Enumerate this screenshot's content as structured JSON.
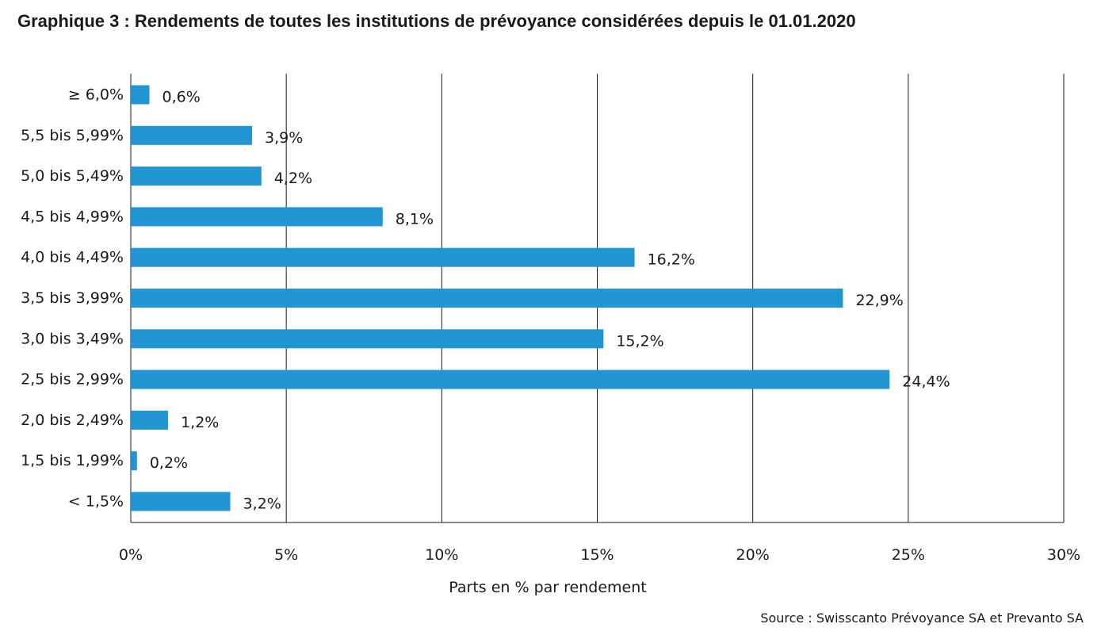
{
  "title": "Graphique 3 : Rendements de toutes les institutions de prévoyance considérées depuis le 01.01.2020",
  "source": "Source : Swisscanto Prévoyance SA et Prevanto SA",
  "colors": {
    "bar": "#2196d3",
    "grid": "#1a1a1a",
    "text": "#1a1a1a"
  },
  "chart_data": {
    "type": "bar",
    "orientation": "horizontal",
    "title": "Graphique 3 : Rendements de toutes les institutions de prévoyance considérées depuis le 01.01.2020",
    "xlabel": "Parts en % par rendement",
    "ylabel": "",
    "xlim": [
      0,
      30
    ],
    "x_ticks": [
      0,
      5,
      10,
      15,
      20,
      25,
      30
    ],
    "x_tick_labels": [
      "0%",
      "5%",
      "10%",
      "15%",
      "20%",
      "25%",
      "30%"
    ],
    "grid": "vertical",
    "categories": [
      "≥ 6,0%",
      "5,5 bis 5,99%",
      "5,0 bis 5,49%",
      "4,5 bis 4,99%",
      "4,0 bis 4,49%",
      "3,5 bis 3,99%",
      "3,0 bis 3,49%",
      "2,5 bis 2,99%",
      "2,0 bis 2,49%",
      "1,5 bis 1,99%",
      "< 1,5%"
    ],
    "values": [
      0.6,
      3.9,
      4.2,
      8.1,
      16.2,
      22.9,
      15.2,
      24.4,
      1.2,
      0.2,
      3.2
    ],
    "value_labels": [
      "0,6%",
      "3,9%",
      "4,2%",
      "8,1%",
      "16,2%",
      "22,9%",
      "15,2%",
      "24,4%",
      "1,2%",
      "0,2%",
      "3,2%"
    ]
  }
}
